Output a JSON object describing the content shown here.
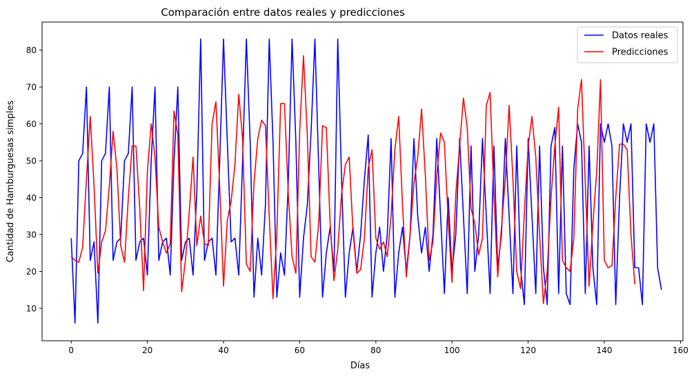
{
  "chart_data": {
    "type": "line",
    "title": "Comparación entre datos reales y predicciones",
    "xlabel": "Días",
    "ylabel": "Cantidad de Hamburguesas simples",
    "xlim": [
      -7.65,
      160.65
    ],
    "ylim": [
      1.2,
      87.6
    ],
    "xticks": [
      0,
      20,
      40,
      60,
      80,
      100,
      120,
      140,
      160
    ],
    "yticks": [
      10,
      20,
      30,
      40,
      50,
      60,
      70,
      80
    ],
    "grid": false,
    "legend_position": "top-right",
    "series": [
      {
        "name": "Datos reales",
        "color": "#0000ff",
        "values": [
          29,
          6,
          50,
          52,
          70,
          23,
          28,
          6,
          50,
          52,
          70,
          23,
          28,
          29,
          50,
          52,
          70,
          23,
          28,
          29,
          19,
          50,
          70,
          23,
          28,
          29,
          19,
          50,
          70,
          23,
          28,
          29,
          19,
          42,
          83,
          23,
          28,
          29,
          19,
          50,
          83,
          55,
          28,
          29,
          19,
          50,
          83,
          55,
          13,
          29,
          19,
          38,
          83,
          55,
          13,
          25,
          19,
          44,
          83,
          55,
          13,
          29,
          38,
          58,
          83,
          48,
          13,
          25,
          32,
          20,
          83,
          45,
          13,
          25,
          32,
          20,
          30,
          45,
          57,
          13,
          25,
          32,
          20,
          30,
          56,
          13,
          25,
          32,
          20,
          30,
          56,
          35,
          25,
          32,
          20,
          30,
          56,
          35,
          14,
          40,
          20,
          30,
          56,
          35,
          14,
          54,
          20,
          30,
          56,
          35,
          14,
          54,
          21,
          30,
          56,
          35,
          14,
          54,
          21,
          11,
          56,
          35,
          14,
          54,
          21,
          11,
          54,
          59,
          14,
          54,
          14,
          11,
          48,
          60,
          55,
          14,
          54,
          21,
          11,
          60,
          55,
          60,
          54,
          11,
          40,
          60,
          55,
          60,
          21,
          21,
          11,
          60,
          55,
          60,
          21,
          15
        ]
      },
      {
        "name": "Predicciones",
        "color": "#ff0000",
        "values": [
          24,
          23,
          22.5,
          26.5,
          45,
          62,
          43,
          19.5,
          28,
          31,
          43,
          58,
          48,
          27,
          22.5,
          40,
          54,
          54,
          37,
          14.8,
          47,
          60,
          51,
          32,
          28,
          25,
          27.5,
          63.5,
          57,
          14.5,
          23,
          36,
          51,
          27,
          35,
          27.5,
          27,
          60,
          66,
          43,
          16,
          34,
          39,
          49,
          68,
          56,
          22,
          20,
          44,
          56,
          61,
          59.5,
          35,
          12.6,
          30,
          65.5,
          65.5,
          41,
          24,
          19.5,
          58,
          78.5,
          57,
          24,
          22.5,
          33,
          59.5,
          59,
          33,
          17.5,
          26,
          41,
          49,
          51,
          31,
          19.5,
          20.5,
          29,
          48,
          53,
          29,
          26,
          28,
          24,
          35,
          53,
          62,
          38,
          18.5,
          30,
          44,
          51,
          64,
          46,
          23,
          28,
          46,
          57.5,
          55,
          34,
          17,
          41,
          54,
          67,
          59,
          37,
          33,
          24.5,
          29,
          65,
          68.5,
          41,
          18.5,
          32,
          45,
          65,
          45,
          20,
          15.3,
          36,
          54,
          62,
          51,
          30,
          11.3,
          20,
          40,
          54,
          64.5,
          23,
          21,
          20,
          29,
          64,
          72,
          44,
          16,
          33,
          47,
          72,
          23,
          21,
          21.5,
          40,
          54.5,
          54.5,
          53,
          30,
          16.5
        ]
      }
    ]
  }
}
